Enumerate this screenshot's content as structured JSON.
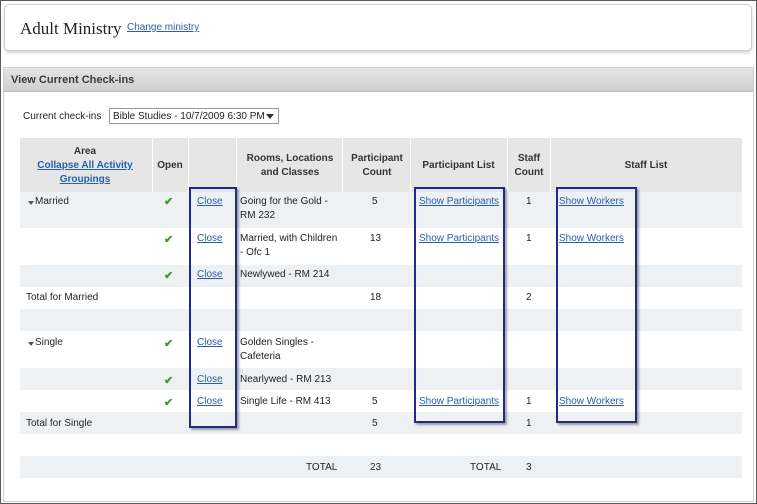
{
  "header": {
    "title": "Adult Ministry",
    "change_link": "Change ministry"
  },
  "panel": {
    "title": "View Current Check-ins"
  },
  "picker": {
    "label": "Current check-ins",
    "value": "Bible Studies - 10/7/2009 6:30 PM"
  },
  "columns": {
    "area": "Area",
    "collapse_link": "Collapse All Activity Groupings",
    "open": "Open",
    "rooms": "Rooms, Locations and Classes",
    "participant_count": "Participant Count",
    "participant_list": "Participant List",
    "staff_count": "Staff Count",
    "staff_list": "Staff List"
  },
  "groups": [
    {
      "name": "Married",
      "rows": [
        {
          "action": "Close",
          "room": "Going for the Gold - RM 232",
          "participants": "5",
          "participant_link": "Show Participants",
          "staff": "1",
          "staff_link": "Show Workers"
        },
        {
          "action": "Close",
          "room": "Married, with Children - Ofc 1",
          "participants": "13",
          "participant_link": "Show Participants",
          "staff": "1",
          "staff_link": "Show Workers"
        },
        {
          "action": "Close",
          "room": "Newlywed - RM 214"
        }
      ],
      "total": {
        "label": "Total for Married",
        "participants": "18",
        "staff": "2"
      }
    },
    {
      "name": "Single",
      "rows": [
        {
          "action": "Close",
          "room": "Golden Singles - Cafeteria"
        },
        {
          "action": "Close",
          "room": "Nearlywed - RM 213"
        },
        {
          "action": "Close",
          "room": "Single Life - RM 413",
          "participants": "5",
          "participant_link": "Show Participants",
          "staff": "1",
          "staff_link": "Show Workers"
        }
      ],
      "total": {
        "label": "Total for Single",
        "participants": "5",
        "staff": "1"
      }
    }
  ],
  "grand_total": {
    "label_participants": "TOTAL",
    "participants": "23",
    "label_staff": "TOTAL",
    "staff": "3"
  },
  "colors": {
    "highlight": "#1f2a8c",
    "link": "#2a5ea8",
    "check": "#3e9a2a",
    "band": "#eef1f4"
  }
}
